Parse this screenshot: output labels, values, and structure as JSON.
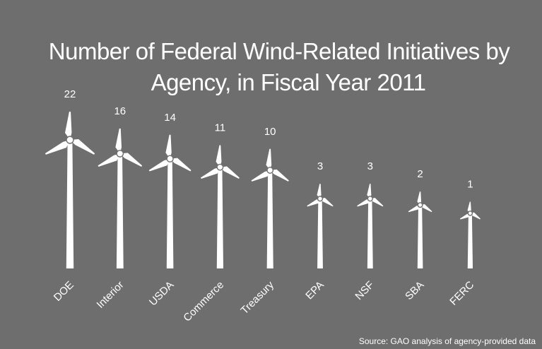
{
  "chart_data": {
    "type": "bar",
    "title_lines": [
      "Number of Federal Wind-Related Initiatives by",
      "Agency, in Fiscal Year 2011"
    ],
    "title": "Number of Federal Wind-Related Initiatives by Agency, in Fiscal Year 2011",
    "categories": [
      "DOE",
      "Interior",
      "USDA",
      "Commerce",
      "Treasury",
      "EPA",
      "NSF",
      "SBA",
      "FERC"
    ],
    "values": [
      22,
      16,
      14,
      11,
      10,
      3,
      3,
      2,
      1
    ],
    "xlabel": "",
    "ylabel": "",
    "ylim": [
      0,
      22
    ],
    "mark_style": "wind-turbine",
    "source": "Source: GAO analysis of agency-provided data",
    "colors": {
      "background": "#6e6e6e",
      "foreground": "#ffffff"
    }
  }
}
